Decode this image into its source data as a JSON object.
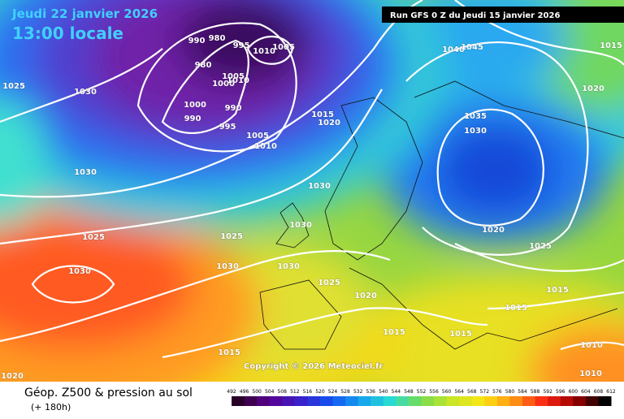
{
  "header": {
    "date": "Jeudi 22 janvier 2026",
    "time": "13:00 locale",
    "run": "Run GFS 0 Z du Jeudi 15 janvier 2026"
  },
  "copyright": "Copyright © 2026 Meteociel.fr",
  "legend": {
    "title": "Géop. Z500 & pression au sol",
    "lead": "(+ 180h)",
    "scale": [
      492,
      496,
      500,
      504,
      508,
      512,
      516,
      520,
      524,
      528,
      532,
      536,
      540,
      544,
      548,
      552,
      556,
      560,
      564,
      568,
      572,
      576,
      580,
      584,
      588,
      592,
      596,
      600,
      604,
      608,
      612
    ]
  },
  "isobar_labels": [
    "1025",
    "1030",
    "1030",
    "1025",
    "1030",
    "1020",
    "990",
    "980",
    "995",
    "1010",
    "1005",
    "980",
    "1005",
    "1000",
    "1010",
    "1000",
    "990",
    "990",
    "995",
    "1005",
    "1010",
    "1015",
    "1020",
    "1030",
    "1030",
    "1025",
    "1030",
    "1030",
    "1025",
    "1020",
    "1015",
    "1015",
    "1015",
    "1040",
    "1045",
    "1035",
    "1030",
    "1020",
    "1025",
    "1015",
    "1020",
    "1015",
    "1015",
    "1010",
    "1010"
  ]
}
